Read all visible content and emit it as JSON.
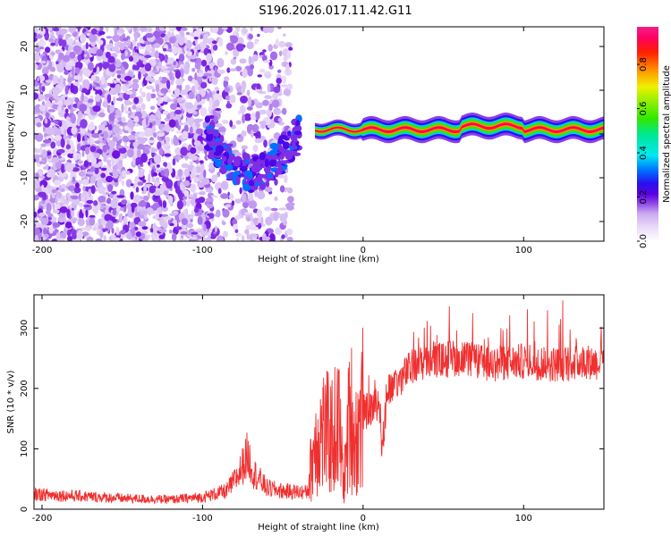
{
  "title": "S196.2026.017.11.42.G11",
  "chart_data": [
    {
      "type": "heatmap",
      "name": "spectrogram",
      "xlabel": "Height of straight line (km)",
      "ylabel": "Frequency (Hz)",
      "xlim": [
        -205,
        150
      ],
      "ylim": [
        -24.5,
        24.5
      ],
      "xticks": [
        -200,
        -100,
        0,
        100
      ],
      "yticks": [
        -20,
        -10,
        0,
        10,
        20
      ],
      "colorbar": {
        "label": "Normalized spectral amplitude",
        "range": [
          0,
          0.97
        ],
        "ticks": [
          0.0,
          0.2,
          0.4,
          0.6,
          0.8
        ],
        "colormap": [
          "#ffffff",
          "#e8d8f8",
          "#c9a8f0",
          "#8a40e8",
          "#6a00e0",
          "#2a10f0",
          "#0070ff",
          "#00e8f0",
          "#00e890",
          "#30e800",
          "#90f000",
          "#f0f000",
          "#ff9000",
          "#ff2000",
          "#ff0060",
          "#f0208a"
        ]
      },
      "regions": [
        {
          "name": "scattered noise",
          "x": [
            -205,
            -93
          ],
          "y": [
            -24.5,
            24.5
          ],
          "amplitude": 0.1
        },
        {
          "name": "scattered noise",
          "x": [
            -93,
            -45
          ],
          "y": [
            -24.5,
            24.5
          ],
          "amplitude": 0.05
        },
        {
          "name": "transition",
          "x": [
            -98,
            -40
          ],
          "y": [
            -12,
            2
          ],
          "amplitude": 0.25
        },
        {
          "name": "signal line",
          "x": [
            -30,
            150
          ],
          "y": [
            -1,
            3
          ],
          "amplitude": 0.9
        }
      ]
    },
    {
      "type": "line",
      "name": "snr",
      "xlabel": "Height of straight line (km)",
      "ylabel": "SNR (10 * v/v)",
      "xlim": [
        -205,
        150
      ],
      "ylim": [
        0,
        355
      ],
      "xticks": [
        -200,
        -100,
        0,
        100
      ],
      "yticks": [
        0,
        100,
        200,
        300
      ],
      "color": "#f03030",
      "series": [
        {
          "name": "SNR",
          "x": [
            -205,
            -180,
            -150,
            -120,
            -100,
            -85,
            -78,
            -72,
            -68,
            -60,
            -50,
            -35,
            -30,
            -25,
            -20,
            -15,
            -12,
            -8,
            -5,
            -2,
            0,
            5,
            10,
            12,
            15,
            20,
            30,
            40,
            60,
            80,
            100,
            120,
            140,
            150
          ],
          "y": [
            25,
            22,
            18,
            16,
            20,
            30,
            55,
            90,
            60,
            35,
            30,
            28,
            110,
            130,
            120,
            140,
            40,
            170,
            110,
            140,
            170,
            175,
            190,
            110,
            200,
            215,
            245,
            255,
            260,
            250,
            255,
            250,
            255,
            250
          ]
        }
      ]
    }
  ]
}
